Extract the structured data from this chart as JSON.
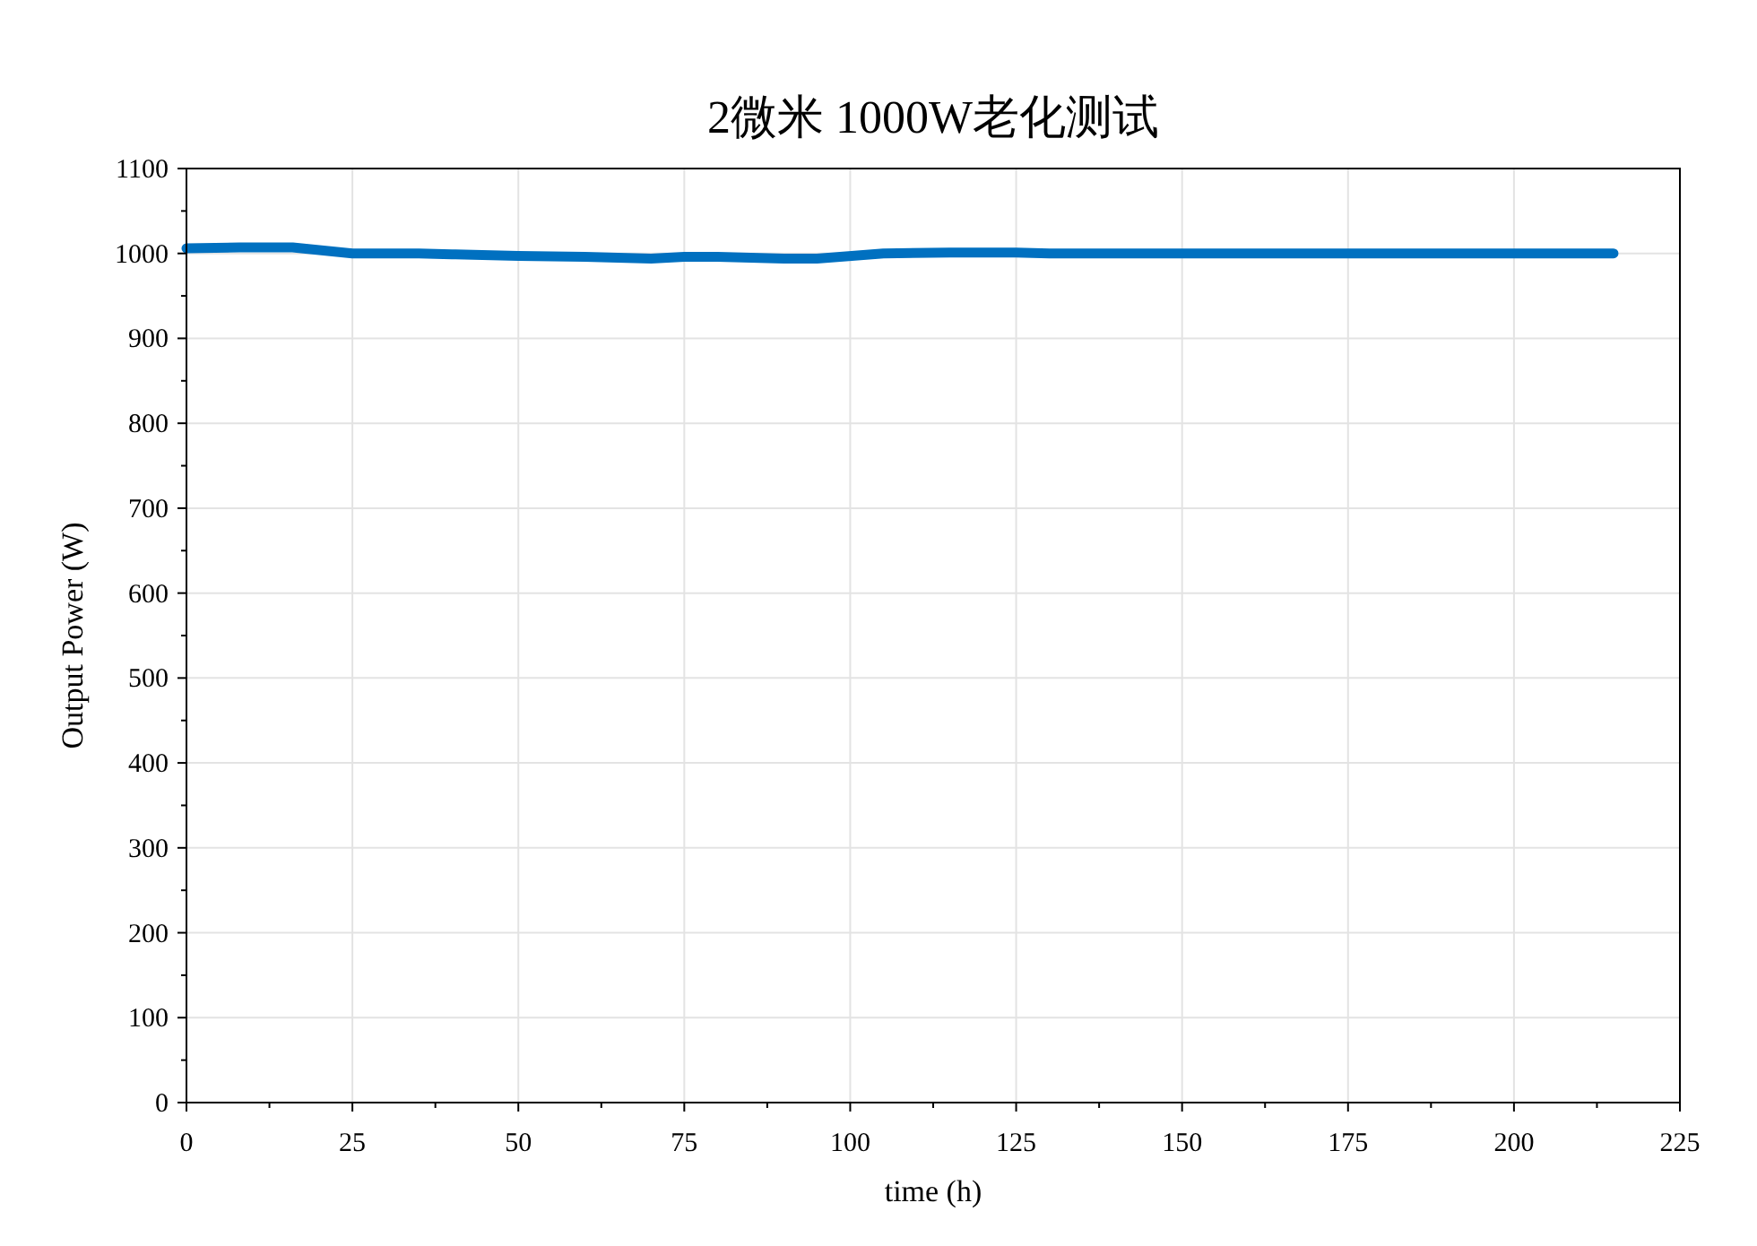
{
  "chart_data": {
    "type": "line",
    "title": "2微米 1000W老化测试",
    "xlabel": "time (h)",
    "ylabel": "Output Power (W)",
    "x": [
      0,
      8,
      16,
      25,
      35,
      40,
      50,
      60,
      70,
      75,
      80,
      90,
      95,
      105,
      115,
      125,
      130,
      150,
      175,
      200,
      215
    ],
    "series": [
      {
        "color": "#0070c0",
        "values": [
          1006,
          1007,
          1007,
          1000,
          1000,
          999,
          997,
          996,
          994,
          996,
          996,
          994,
          994,
          1000,
          1001,
          1001,
          1000,
          1000,
          1000,
          1000,
          1000
        ]
      }
    ],
    "xlim": [
      0,
      225
    ],
    "xticks": [
      0,
      25,
      50,
      75,
      100,
      125,
      150,
      175,
      200,
      225
    ],
    "ylim": [
      0,
      1100
    ],
    "yticks": [
      0,
      100,
      200,
      300,
      400,
      500,
      600,
      700,
      800,
      900,
      1000,
      1100
    ],
    "grid": true,
    "marker": "none",
    "line_style": "solid"
  }
}
